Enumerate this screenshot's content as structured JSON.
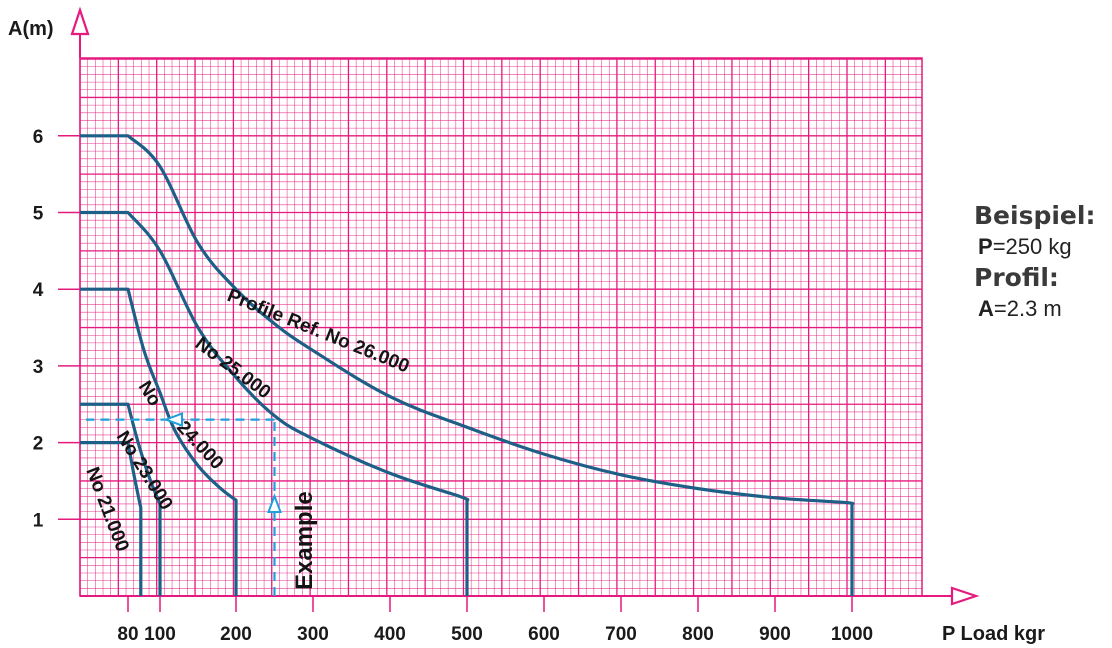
{
  "chart_data": {
    "type": "line",
    "title": "",
    "xlabel": "P Load kgr",
    "ylabel": "A(m)",
    "x_ticks": [
      "80",
      "100",
      "200",
      "300",
      "400",
      "500",
      "600",
      "700",
      "800",
      "900",
      "1000"
    ],
    "y_ticks": [
      "1",
      "2",
      "3",
      "4",
      "5",
      "6"
    ],
    "xlim": [
      80,
      1000
    ],
    "ylim": [
      0,
      6.6
    ],
    "grid": true,
    "series": [
      {
        "name": "Profile Ref. No 26.000",
        "label": "Profile Ref. No 26.000",
        "x": [
          75,
          80,
          100,
          150,
          200,
          250,
          300,
          400,
          500,
          600,
          700,
          800,
          900,
          990,
          1000
        ],
        "y": [
          6.0,
          6.0,
          5.6,
          4.6,
          4.0,
          3.55,
          3.2,
          2.6,
          2.2,
          1.85,
          1.58,
          1.4,
          1.28,
          1.22,
          1.2
        ]
      },
      {
        "name": "No 25.000",
        "label": "No 25.000",
        "x": [
          75,
          80,
          100,
          150,
          200,
          250,
          300,
          400,
          490,
          500
        ],
        "y": [
          5.0,
          5.0,
          4.5,
          3.5,
          2.85,
          2.35,
          2.05,
          1.6,
          1.3,
          1.25
        ]
      },
      {
        "name": "No 24.000",
        "label": "No 24.000",
        "x": [
          75,
          80,
          90,
          100,
          120,
          150,
          180,
          200
        ],
        "y": [
          4.0,
          4.0,
          3.2,
          2.65,
          2.15,
          1.7,
          1.4,
          1.25
        ]
      },
      {
        "name": "No 23.000",
        "label": "No 23.000",
        "x": [
          75,
          80,
          85,
          90,
          95,
          100
        ],
        "y": [
          2.5,
          2.5,
          2.1,
          1.75,
          1.45,
          1.2
        ]
      },
      {
        "name": "No 21.000",
        "label": "No 21.000",
        "x": [
          75,
          80,
          84,
          88
        ],
        "y": [
          2.0,
          2.0,
          1.55,
          1.15
        ]
      }
    ],
    "example": {
      "label": "Example",
      "x": 250,
      "y": 2.3
    },
    "colors": {
      "grid": "#e6197e",
      "curve": "#1d5f86",
      "example": "#1ea0dc",
      "arrow": "#e6197e"
    }
  },
  "beispiel": {
    "heading1": "Beispiel:",
    "p_label": "P",
    "p_value": "=250 kg",
    "heading2": "Profil:",
    "a_label": "A",
    "a_value": "=2.3 m"
  }
}
